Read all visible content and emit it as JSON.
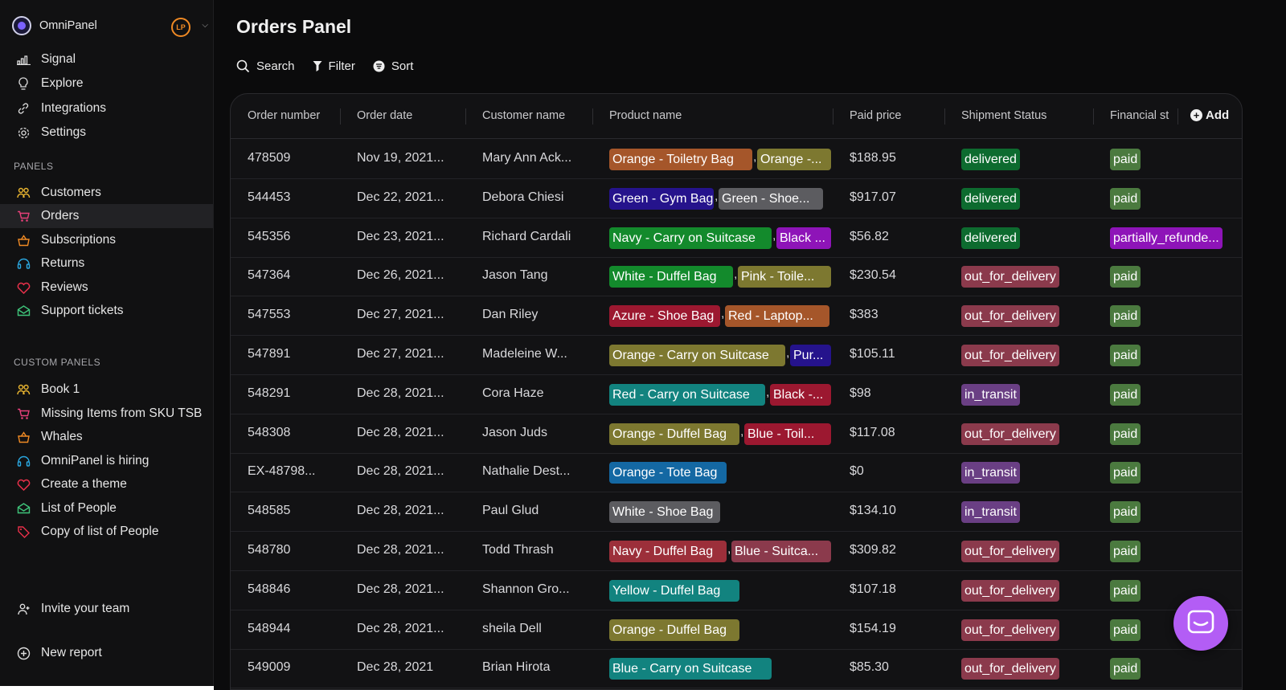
{
  "app": {
    "name": "OmniPanel",
    "user_initials": "LP"
  },
  "nav": {
    "main": [
      {
        "label": "Signal",
        "icon": "signal-icon"
      },
      {
        "label": "Explore",
        "icon": "lightbulb-icon"
      },
      {
        "label": "Integrations",
        "icon": "link-icon"
      },
      {
        "label": "Settings",
        "icon": "gear-icon"
      }
    ],
    "panels_label": "PANELS",
    "panels": [
      {
        "label": "Customers",
        "icon": "users-icon"
      },
      {
        "label": "Orders",
        "icon": "cart-icon"
      },
      {
        "label": "Subscriptions",
        "icon": "basket-icon"
      },
      {
        "label": "Returns",
        "icon": "headset-icon"
      },
      {
        "label": "Reviews",
        "icon": "heart-icon"
      },
      {
        "label": "Support tickets",
        "icon": "mail-icon"
      }
    ],
    "custom_label": "CUSTOM PANELS",
    "custom": [
      {
        "label": "Book 1",
        "icon": "users-icon"
      },
      {
        "label": "Missing Items from SKU TSB",
        "icon": "cart-icon"
      },
      {
        "label": "Whales",
        "icon": "basket-icon"
      },
      {
        "label": "OmniPanel is hiring",
        "icon": "headset-icon"
      },
      {
        "label": "Create a theme",
        "icon": "heart-icon"
      },
      {
        "label": "List of People",
        "icon": "mail-icon"
      },
      {
        "label": "Copy of list of People",
        "icon": "tag-icon"
      }
    ],
    "invite": "Invite your team",
    "new_report": "New report"
  },
  "page": {
    "title": "Orders Panel",
    "toolbar": {
      "search": "Search",
      "filter": "Filter",
      "sort": "Sort"
    }
  },
  "table": {
    "columns": [
      "Order number",
      "Order date",
      "Customer name",
      "Product name",
      "Paid price",
      "Shipment Status",
      "Financial st"
    ],
    "add_label": "Add",
    "rows": [
      {
        "order": "478509",
        "date": "Nov 19, 2021...",
        "customer": "Mary Ann Ack...",
        "products": [
          [
            "Orange - Toiletry Bag",
            "#a5562a"
          ],
          [
            "Orange -...",
            "#7d7830"
          ]
        ],
        "price": "$188.95",
        "shipment": [
          "delivered",
          "#0d6b2f"
        ],
        "financial": [
          "paid",
          "#4b7a3f"
        ]
      },
      {
        "order": "544453",
        "date": "Dec 22, 2021...",
        "customer": "Debora Chiesi",
        "products": [
          [
            "Green - Gym Bag",
            "#25138c"
          ],
          [
            "Green - Shoe...",
            "#5c5c60"
          ]
        ],
        "price": "$917.07",
        "shipment": [
          "delivered",
          "#0d6b2f"
        ],
        "financial": [
          "paid",
          "#4b7a3f"
        ]
      },
      {
        "order": "545356",
        "date": "Dec 23, 2021...",
        "customer": "Richard Cardali",
        "products": [
          [
            "Navy - Carry on Suitcase",
            "#138a2c"
          ],
          [
            "Black ...",
            "#8e14b8"
          ]
        ],
        "price": "$56.82",
        "shipment": [
          "delivered",
          "#0d6b2f"
        ],
        "financial": [
          "partially_refunde...",
          "#8e14b8"
        ]
      },
      {
        "order": "547364",
        "date": "Dec 26, 2021...",
        "customer": "Jason Tang",
        "products": [
          [
            "White - Duffel Bag",
            "#138a2c"
          ],
          [
            "Pink - Toile...",
            "#7d7830"
          ]
        ],
        "price": "$230.54",
        "shipment": [
          "out_for_delivery",
          "#8b3a4c"
        ],
        "financial": [
          "paid",
          "#4b7a3f"
        ]
      },
      {
        "order": "547553",
        "date": "Dec 27, 2021...",
        "customer": "Dan Riley",
        "products": [
          [
            "Azure - Shoe Bag",
            "#9c1830"
          ],
          [
            "Red - Laptop...",
            "#a5562a"
          ]
        ],
        "price": "$383",
        "shipment": [
          "out_for_delivery",
          "#8b3a4c"
        ],
        "financial": [
          "paid",
          "#4b7a3f"
        ]
      },
      {
        "order": "547891",
        "date": "Dec 27, 2021...",
        "customer": "Madeleine W...",
        "products": [
          [
            "Orange - Carry on Suitcase",
            "#7d7830"
          ],
          [
            "Pur...",
            "#25138c"
          ]
        ],
        "price": "$105.11",
        "shipment": [
          "out_for_delivery",
          "#8b3a4c"
        ],
        "financial": [
          "paid",
          "#4b7a3f"
        ]
      },
      {
        "order": "548291",
        "date": "Dec 28, 2021...",
        "customer": "Cora Haze",
        "products": [
          [
            "Red - Carry on Suitcase",
            "#12837f"
          ],
          [
            "Black -...",
            "#9c1830"
          ]
        ],
        "price": "$98",
        "shipment": [
          "in_transit",
          "#6a3f84"
        ],
        "financial": [
          "paid",
          "#4b7a3f"
        ]
      },
      {
        "order": "548308",
        "date": "Dec 28, 2021...",
        "customer": "Jason Juds",
        "products": [
          [
            "Orange - Duffel Bag",
            "#7d7830"
          ],
          [
            "Blue - Toil...",
            "#9c1830"
          ]
        ],
        "price": "$117.08",
        "shipment": [
          "out_for_delivery",
          "#8b3a4c"
        ],
        "financial": [
          "paid",
          "#4b7a3f"
        ]
      },
      {
        "order": "EX-48798...",
        "date": "Dec 28, 2021...",
        "customer": "Nathalie Dest...",
        "products": [
          [
            "Orange - Tote Bag",
            "#1468a3"
          ]
        ],
        "price": "$0",
        "shipment": [
          "in_transit",
          "#6a3f84"
        ],
        "financial": [
          "paid",
          "#4b7a3f"
        ]
      },
      {
        "order": "548585",
        "date": "Dec 28, 2021...",
        "customer": "Paul Glud",
        "products": [
          [
            "White - Shoe Bag",
            "#5c5c60"
          ]
        ],
        "price": "$134.10",
        "shipment": [
          "in_transit",
          "#6a3f84"
        ],
        "financial": [
          "paid",
          "#4b7a3f"
        ]
      },
      {
        "order": "548780",
        "date": "Dec 28, 2021...",
        "customer": "Todd Thrash",
        "products": [
          [
            "Navy - Duffel Bag",
            "#9c2f3a"
          ],
          [
            "Blue - Suitca...",
            "#8b3a4c"
          ]
        ],
        "price": "$309.82",
        "shipment": [
          "out_for_delivery",
          "#8b3a4c"
        ],
        "financial": [
          "paid",
          "#4b7a3f"
        ]
      },
      {
        "order": "548846",
        "date": "Dec 28, 2021...",
        "customer": "Shannon Gro...",
        "products": [
          [
            "Yellow - Duffel Bag",
            "#12837f"
          ]
        ],
        "price": "$107.18",
        "shipment": [
          "out_for_delivery",
          "#8b3a4c"
        ],
        "financial": [
          "paid",
          "#4b7a3f"
        ]
      },
      {
        "order": "548944",
        "date": "Dec 28, 2021...",
        "customer": "sheila Dell",
        "products": [
          [
            "Orange - Duffel Bag",
            "#7d7830"
          ]
        ],
        "price": "$154.19",
        "shipment": [
          "out_for_delivery",
          "#8b3a4c"
        ],
        "financial": [
          "paid",
          "#4b7a3f"
        ]
      },
      {
        "order": "549009",
        "date": "Dec 28, 2021",
        "customer": "Brian Hirota",
        "products": [
          [
            "Blue - Carry on Suitcase",
            "#12837f"
          ]
        ],
        "price": "$85.30",
        "shipment": [
          "out_for_delivery",
          "#8b3a4c"
        ],
        "financial": [
          "paid",
          "#4b7a3f"
        ]
      }
    ]
  },
  "chat": {
    "icon": "chat-icon",
    "color": "#b35df5"
  }
}
